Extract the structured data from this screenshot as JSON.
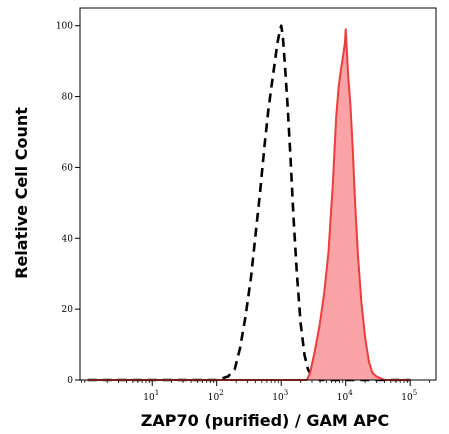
{
  "chart_data": {
    "type": "area",
    "xlabel": "ZAP70 (purified) / GAM APC",
    "ylabel": "Relative Cell Count",
    "x_scale": "log",
    "xlim_exponent": [
      -0.12,
      5.4
    ],
    "ylim": [
      0,
      105
    ],
    "x_ticks": [
      {
        "base": "10",
        "exp": "1",
        "value": 10
      },
      {
        "base": "10",
        "exp": "2",
        "value": 100
      },
      {
        "base": "10",
        "exp": "3",
        "value": 1000
      },
      {
        "base": "10",
        "exp": "4",
        "value": 10000
      },
      {
        "base": "10",
        "exp": "5",
        "value": 100000
      }
    ],
    "y_ticks": [
      {
        "label": "0",
        "value": 0
      },
      {
        "label": "20",
        "value": 20
      },
      {
        "label": "40",
        "value": 40
      },
      {
        "label": "60",
        "value": 60
      },
      {
        "label": "80",
        "value": 80
      },
      {
        "label": "100",
        "value": 100
      }
    ],
    "grid": false,
    "legend": "none",
    "series": [
      {
        "style": "dashed",
        "color": "#000000",
        "x": [
          1,
          10,
          100,
          150,
          190,
          230,
          280,
          340,
          400,
          470,
          550,
          630,
          720,
          800,
          870,
          940,
          1000,
          1060,
          1150,
          1260,
          1400,
          1550,
          1750,
          2000,
          2300,
          2600,
          3000,
          4000,
          10000,
          100000
        ],
        "y": [
          0,
          0,
          0,
          1,
          3,
          9,
          18,
          29,
          41,
          53,
          66,
          76,
          84,
          90,
          95,
          98,
          100,
          97,
          88,
          77,
          62,
          46,
          30,
          16,
          7,
          3,
          1,
          0,
          0,
          0
        ]
      },
      {
        "style": "filled",
        "color": "#ee3b3b",
        "fill": "#f9a3a6",
        "x": [
          1,
          1000,
          2500,
          2800,
          3300,
          3900,
          4600,
          5400,
          6300,
          7100,
          7800,
          8500,
          9200,
          9700,
          10000,
          10400,
          11000,
          11800,
          12800,
          14000,
          15500,
          17500,
          20000,
          23000,
          26000,
          30000,
          40000,
          100000
        ],
        "y": [
          0,
          0,
          0,
          2,
          8,
          15,
          24,
          36,
          55,
          74,
          83,
          88,
          92,
          95,
          99,
          93,
          85,
          78,
          66,
          50,
          35,
          22,
          12,
          5,
          2,
          1,
          0,
          0
        ]
      }
    ]
  }
}
